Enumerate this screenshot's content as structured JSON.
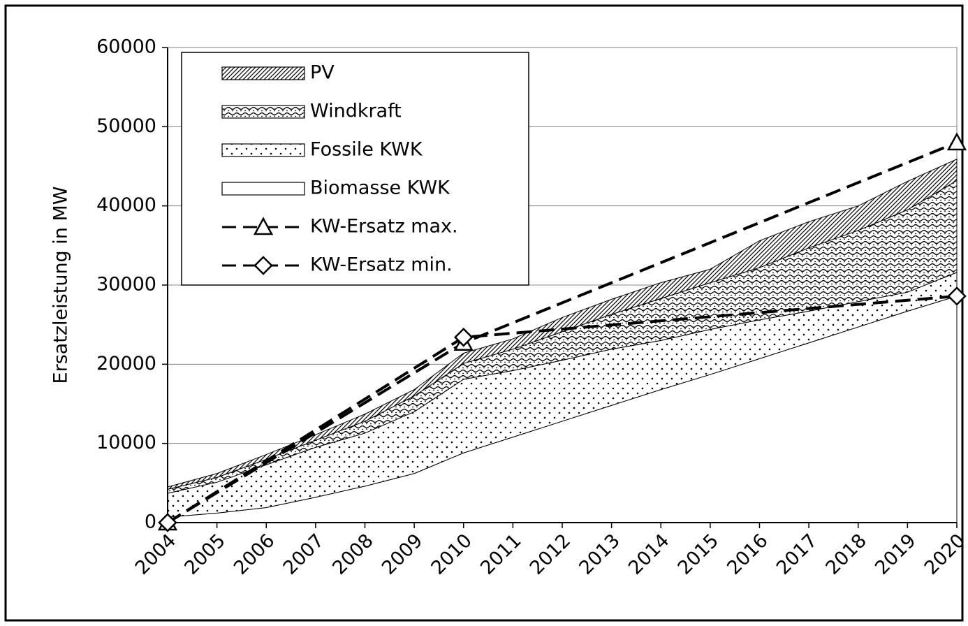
{
  "chart_data": {
    "type": "area",
    "y_label": "Ersatzleistung in MW",
    "categories": [
      "2004",
      "2005",
      "2006",
      "2007",
      "2008",
      "2009",
      "2010",
      "2011",
      "2012",
      "2013",
      "2014",
      "2015",
      "2016",
      "2017",
      "2018",
      "2019",
      "2020"
    ],
    "ylim": [
      0,
      60000
    ],
    "yticks": [
      0,
      10000,
      20000,
      30000,
      40000,
      50000,
      60000
    ],
    "grid": true,
    "legend": "top-left",
    "series": [
      {
        "name": "PV",
        "type": "area",
        "pattern": "hatch",
        "color": "#000000",
        "values": [
          300,
          500,
          600,
          700,
          900,
          800,
          1300,
          1300,
          1800,
          1900,
          2000,
          1700,
          3400,
          3300,
          3100,
          3600,
          2700
        ]
      },
      {
        "name": "Windkraft",
        "type": "area",
        "pattern": "wave",
        "color": "#000000",
        "values": [
          500,
          600,
          700,
          900,
          1500,
          2000,
          2000,
          2700,
          3600,
          4400,
          5300,
          5900,
          6600,
          8000,
          9000,
          10400,
          11600
        ]
      },
      {
        "name": "Fossile KWK",
        "type": "area",
        "pattern": "dots",
        "color": "#000000",
        "values": [
          3000,
          3900,
          5400,
          6300,
          6700,
          7800,
          9300,
          8400,
          7700,
          7100,
          6200,
          5700,
          4900,
          4000,
          3200,
          2400,
          3000
        ]
      },
      {
        "name": "Biomasse KWK",
        "type": "area",
        "pattern": "plain",
        "color": "#000000",
        "values": [
          700,
          1200,
          1900,
          3200,
          4600,
          6200,
          8800,
          10800,
          12800,
          14800,
          16800,
          18700,
          20700,
          22700,
          24700,
          26700,
          28600
        ]
      },
      {
        "name": "KW-Ersatz max.",
        "type": "line",
        "marker": "triangle",
        "color": "#000000",
        "x": [
          2004,
          2010,
          2020
        ],
        "values": [
          0,
          22700,
          48000
        ]
      },
      {
        "name": "KW-Ersatz min.",
        "type": "line",
        "marker": "diamond",
        "color": "#000000",
        "x": [
          2004,
          2010,
          2020
        ],
        "values": [
          0,
          23400,
          28600
        ]
      }
    ]
  }
}
